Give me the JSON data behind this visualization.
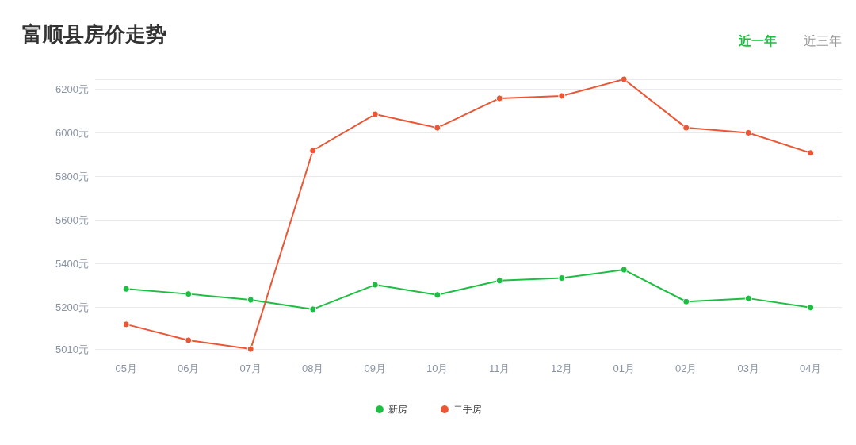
{
  "chart_data": {
    "type": "line",
    "title": "富顺县房价走势",
    "annotations": [
      "近一年",
      "近三年"
    ],
    "categories": [
      "05月",
      "06月",
      "07月",
      "08月",
      "09月",
      "10月",
      "11月",
      "12月",
      "01月",
      "02月",
      "03月",
      "04月"
    ],
    "series": [
      {
        "name": "新房",
        "color": "#1dbf43",
        "values": [
          5285,
          5262,
          5235,
          5192,
          5304,
          5258,
          5323,
          5335,
          5373,
          5227,
          5242,
          5200
        ]
      },
      {
        "name": "二手房",
        "color": "#ec5634",
        "values": [
          5123,
          5050,
          5010,
          5919,
          6085,
          6023,
          6158,
          6169,
          6245,
          6023,
          6000,
          5908
        ]
      }
    ],
    "ylim": [
      5010,
      6245
    ],
    "yticks": [
      {
        "value": 5010,
        "label": "5010元"
      },
      {
        "value": 5200,
        "label": "5200元"
      },
      {
        "value": 5400,
        "label": "5400元"
      },
      {
        "value": 5600,
        "label": "5600元"
      },
      {
        "value": 5800,
        "label": "5800元"
      },
      {
        "value": 6000,
        "label": "6000元"
      },
      {
        "value": 6200,
        "label": "6200元"
      },
      {
        "value": 6245,
        "label": null
      }
    ],
    "grid": "y",
    "legend": "bottom",
    "marker": "circle",
    "line_style": "solid"
  }
}
